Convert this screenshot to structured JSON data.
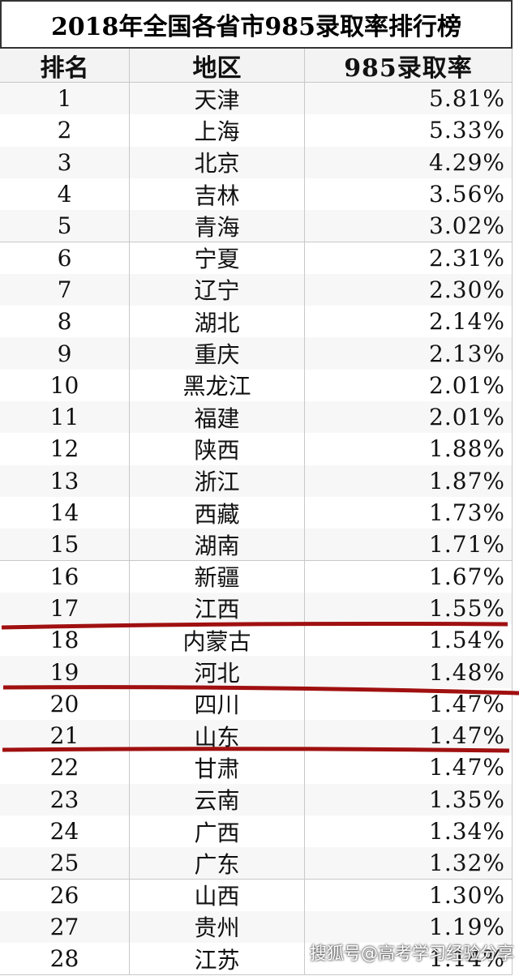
{
  "title": "2018年全国各省市985录取率排行榜",
  "table": {
    "header": [
      "排名",
      "地区",
      "985录取率"
    ],
    "rows": [
      [
        "1",
        "天津",
        "5.81%"
      ],
      [
        "2",
        "上海",
        "5.33%"
      ],
      [
        "3",
        "北京",
        "4.29%"
      ],
      [
        "4",
        "吉林",
        "3.56%"
      ],
      [
        "5",
        "青海",
        "3.02%"
      ],
      [
        "6",
        "宁夏",
        "2.31%"
      ],
      [
        "7",
        "辽宁",
        "2.30%"
      ],
      [
        "8",
        "湖北",
        "2.14%"
      ],
      [
        "9",
        "重庆",
        "2.13%"
      ],
      [
        "10",
        "黑龙江",
        "2.01%"
      ],
      [
        "11",
        "福建",
        "2.01%"
      ],
      [
        "12",
        "陕西",
        "1.88%"
      ],
      [
        "13",
        "浙江",
        "1.87%"
      ],
      [
        "14",
        "西藏",
        "1.73%"
      ],
      [
        "15",
        "湖南",
        "1.71%"
      ],
      [
        "16",
        "新疆",
        "1.67%"
      ],
      [
        "17",
        "江西",
        "1.55%"
      ],
      [
        "18",
        "内蒙古",
        "1.54%"
      ],
      [
        "19",
        "河北",
        "1.48%"
      ],
      [
        "20",
        "四川",
        "1.47%"
      ],
      [
        "21",
        "山东",
        "1.47%"
      ],
      [
        "22",
        "甘肃",
        "1.47%"
      ],
      [
        "23",
        "云南",
        "1.35%"
      ],
      [
        "24",
        "广西",
        "1.34%"
      ],
      [
        "25",
        "广东",
        "1.32%"
      ],
      [
        "26",
        "山西",
        "1.30%"
      ],
      [
        "27",
        "贵州",
        "1.19%"
      ],
      [
        "28",
        "江苏",
        "1.14%"
      ]
    ]
  },
  "watermark": "搜狐号@高考学习经验分享"
}
